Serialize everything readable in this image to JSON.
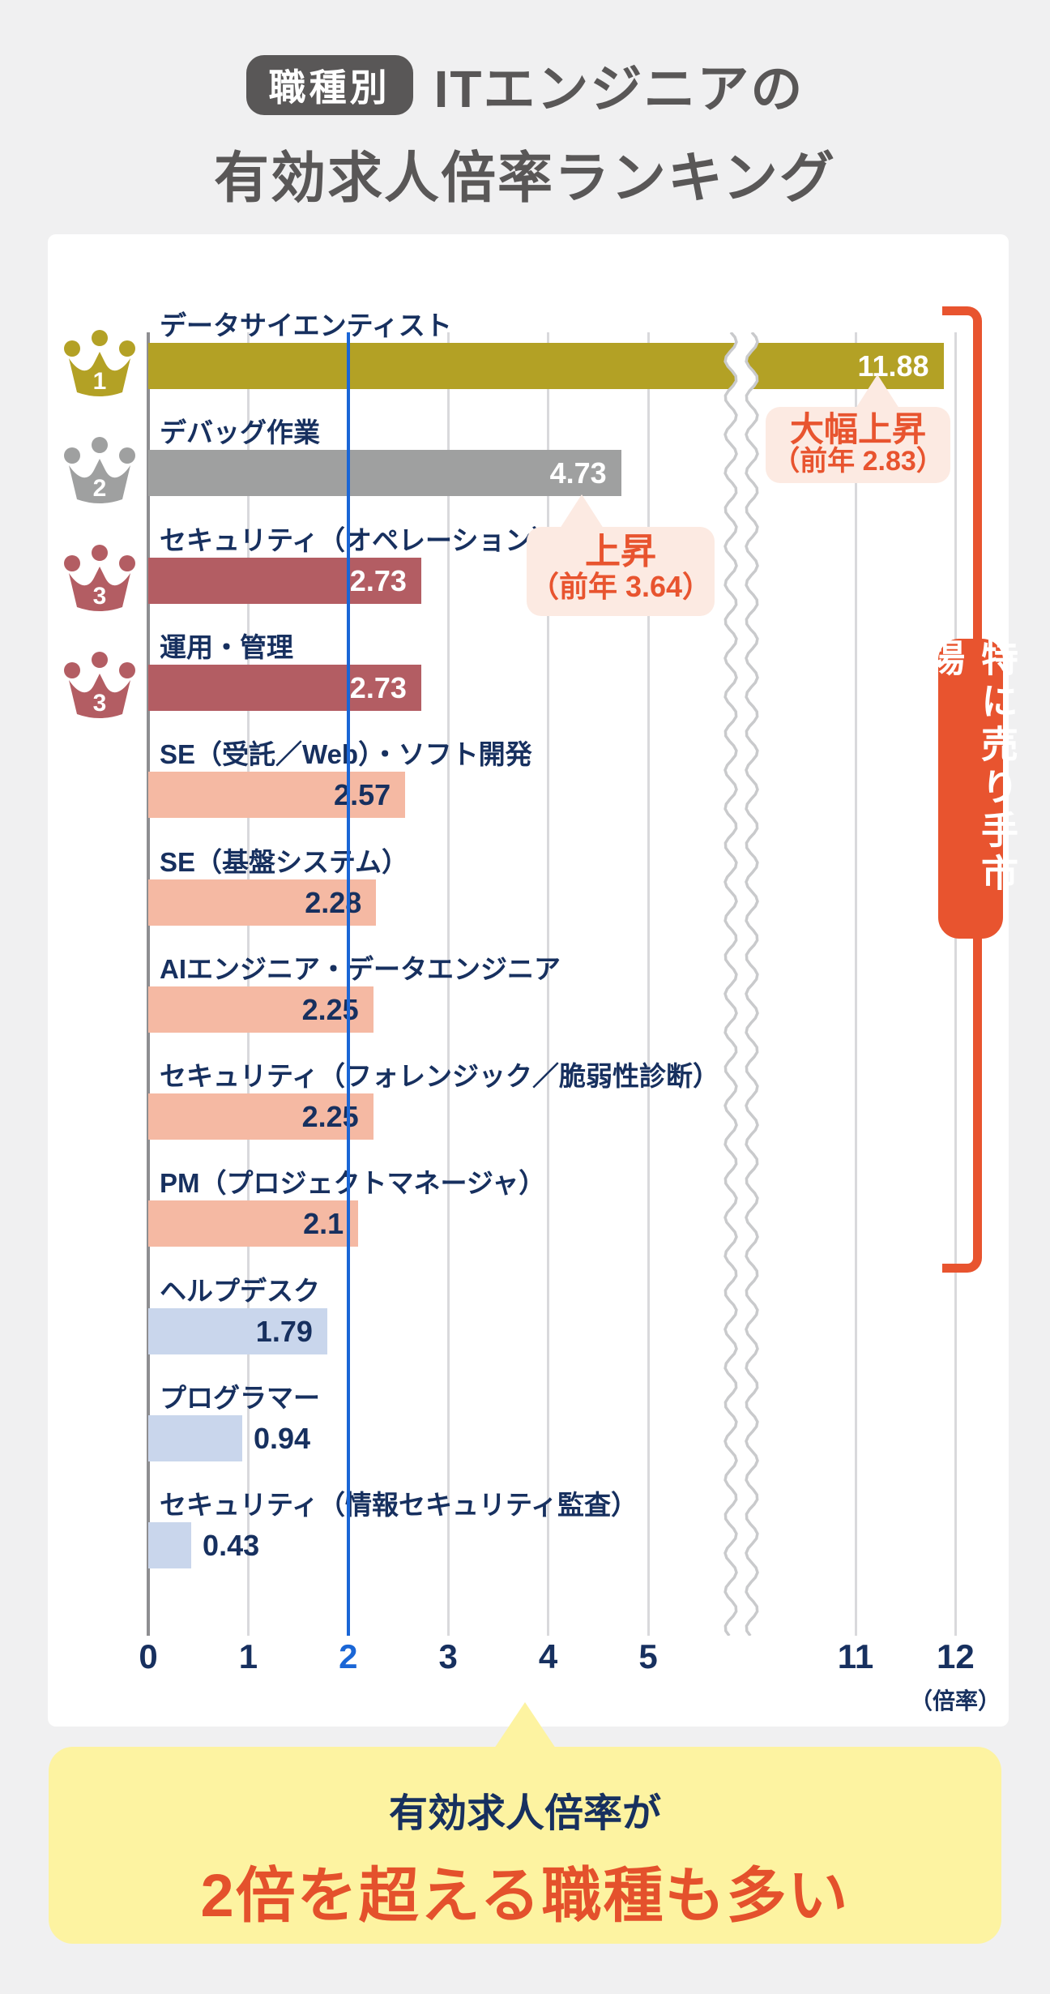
{
  "title": {
    "badge": "職種別",
    "line1": "ITエンジニアの",
    "line2": "有効求人倍率ランキング"
  },
  "colors": {
    "title_gray": "#595757",
    "navy": "#17305f",
    "highlight_blue": "#1a66d6",
    "accent_orange": "#e8542f",
    "gold": "#b3a125",
    "silver": "#9fa0a0",
    "maroon": "#b35d63",
    "salmon": "#f5b9a3",
    "lightblue": "#c9d6ec",
    "callout_pink": "#fceae2",
    "footer_yellow": "#fdf3a1",
    "panel_white": "#ffffff",
    "grid_gray": "#d9d9dc",
    "axis_gray": "#8e8e91"
  },
  "chart_data": {
    "type": "bar",
    "orientation": "horizontal",
    "title": "職種別 ITエンジニアの有効求人倍率ランキング",
    "xlabel": "（倍率）",
    "xlim": [
      0,
      12.45
    ],
    "grid": true,
    "axis_break_between": [
      5,
      11
    ],
    "highlight_x": 2,
    "xticks": [
      {
        "v": 0,
        "label": "0"
      },
      {
        "v": 1,
        "label": "1"
      },
      {
        "v": 2,
        "label": "2"
      },
      {
        "v": 3,
        "label": "3"
      },
      {
        "v": 4,
        "label": "4"
      },
      {
        "v": 5,
        "label": "5"
      },
      {
        "v": 11,
        "label": "11"
      },
      {
        "v": 12,
        "label": "12"
      }
    ],
    "rows": [
      {
        "label": "データサイエンティスト",
        "value": 11.88,
        "value_label": "11.88",
        "rank": "1",
        "color_key": "gold",
        "value_style": "light-in"
      },
      {
        "label": "デバッグ作業",
        "value": 4.73,
        "value_label": "4.73",
        "rank": "2",
        "color_key": "silver",
        "value_style": "light-in"
      },
      {
        "label": "セキュリティ（オペレーション）",
        "value": 2.73,
        "value_label": "2.73",
        "rank": "3",
        "color_key": "maroon",
        "value_style": "light-in"
      },
      {
        "label": "運用・管理",
        "value": 2.73,
        "value_label": "2.73",
        "rank": "3",
        "color_key": "maroon",
        "value_style": "light-in"
      },
      {
        "label": "SE（受託／Web）・ソフト開発",
        "value": 2.57,
        "value_label": "2.57",
        "rank": null,
        "color_key": "salmon",
        "value_style": "dark-in"
      },
      {
        "label": "SE（基盤システム）",
        "value": 2.28,
        "value_label": "2.28",
        "rank": null,
        "color_key": "salmon",
        "value_style": "dark-in"
      },
      {
        "label": "AIエンジニア・データエンジニア",
        "value": 2.25,
        "value_label": "2.25",
        "rank": null,
        "color_key": "salmon",
        "value_style": "dark-in"
      },
      {
        "label": "セキュリティ（フォレンジック／脆弱性診断）",
        "value": 2.25,
        "value_label": "2.25",
        "rank": null,
        "color_key": "salmon",
        "value_style": "dark-in"
      },
      {
        "label": "PM（プロジェクトマネージャ）",
        "value": 2.1,
        "value_label": "2.1",
        "rank": null,
        "color_key": "salmon",
        "value_style": "dark-in"
      },
      {
        "label": "ヘルプデスク",
        "value": 1.79,
        "value_label": "1.79",
        "rank": null,
        "color_key": "lightblue",
        "value_style": "dark-in"
      },
      {
        "label": "プログラマー",
        "value": 0.94,
        "value_label": "0.94",
        "rank": null,
        "color_key": "lightblue",
        "value_style": "dark-out"
      },
      {
        "label": "セキュリティ（情報セキュリティ監査）",
        "value": 0.43,
        "value_label": "0.43",
        "rank": null,
        "color_key": "lightblue",
        "value_style": "dark-out"
      }
    ]
  },
  "callouts": [
    {
      "title": "大幅上昇",
      "sub": "（前年 2.83）",
      "target_value": 11.88
    },
    {
      "title": "上昇",
      "sub": "（前年 3.64）",
      "target_value": 4.73
    }
  ],
  "bracket": {
    "label": "特に売り手市場"
  },
  "axis_unit": "（倍率）",
  "footer": {
    "line1": "有効求人倍率が",
    "line2": "2倍を超える職種も多い"
  }
}
